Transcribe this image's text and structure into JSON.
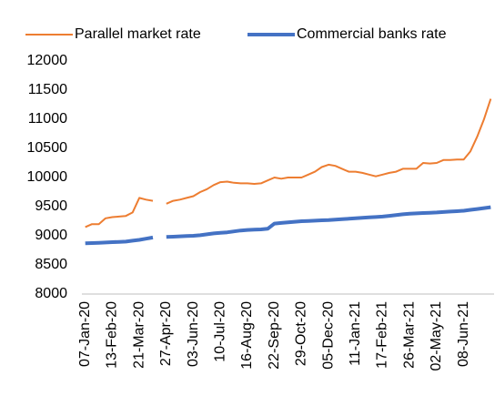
{
  "chart_data": {
    "type": "line",
    "categories": [
      "07-Jan-20",
      null,
      null,
      null,
      "13-Feb-20",
      null,
      null,
      null,
      "21-Mar-20",
      null,
      null,
      null,
      "27-Apr-20",
      null,
      null,
      null,
      "03-Jun-20",
      null,
      null,
      null,
      "10-Jul-20",
      null,
      null,
      null,
      "16-Aug-20",
      null,
      null,
      null,
      "22-Sep-20",
      null,
      null,
      null,
      "29-Oct-20",
      null,
      null,
      null,
      "05-Dec-20",
      null,
      null,
      null,
      "11-Jan-21",
      null,
      null,
      null,
      "17-Feb-21",
      null,
      null,
      null,
      "26-Mar-21",
      null,
      null,
      null,
      "02-May-21",
      null,
      null,
      null,
      "08-Jun-21",
      null,
      null,
      null,
      null
    ],
    "series": [
      {
        "name": "Parallel market rate",
        "color": "#ed7d31",
        "values": [
          9150,
          9200,
          9200,
          9300,
          9320,
          9330,
          9340,
          9400,
          9650,
          9620,
          9600,
          null,
          9550,
          9600,
          9620,
          9650,
          9680,
          9750,
          9800,
          9870,
          9920,
          9930,
          9910,
          9900,
          9900,
          9890,
          9900,
          9950,
          10000,
          9980,
          10000,
          10000,
          10000,
          10050,
          10100,
          10180,
          10220,
          10200,
          10150,
          10100,
          10100,
          10080,
          10050,
          10020,
          10050,
          10080,
          10100,
          10150,
          10150,
          10150,
          10250,
          10240,
          10250,
          10300,
          10300,
          10310,
          10310,
          10450,
          10700,
          11000,
          11350
        ]
      },
      {
        "name": "Commercial banks rate",
        "color": "#4472c4",
        "values": [
          8870,
          8875,
          8880,
          8885,
          8890,
          8895,
          8900,
          8915,
          8930,
          8950,
          8970,
          null,
          8980,
          8985,
          8990,
          8995,
          9000,
          9010,
          9025,
          9040,
          9050,
          9060,
          9075,
          9090,
          9100,
          9105,
          9110,
          9120,
          9210,
          9220,
          9230,
          9240,
          9250,
          9255,
          9260,
          9265,
          9270,
          9278,
          9285,
          9292,
          9300,
          9308,
          9315,
          9322,
          9330,
          9342,
          9355,
          9368,
          9380,
          9385,
          9390,
          9395,
          9400,
          9408,
          9415,
          9422,
          9430,
          9445,
          9460,
          9475,
          9490
        ]
      }
    ],
    "ylim": [
      8000,
      12000
    ],
    "yticks": [
      8000,
      8500,
      9000,
      9500,
      10000,
      10500,
      11000,
      11500,
      12000
    ]
  }
}
